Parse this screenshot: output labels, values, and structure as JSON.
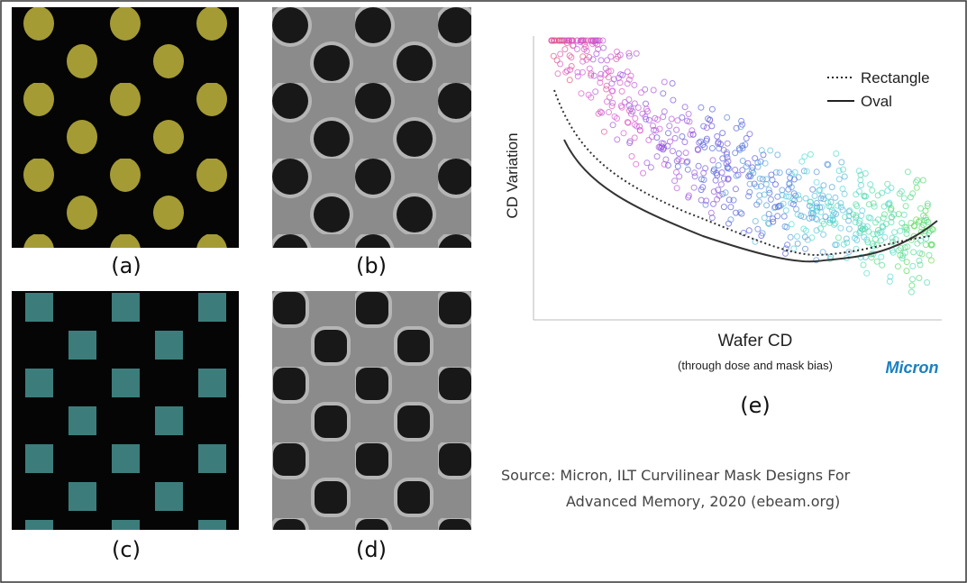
{
  "panels": [
    {
      "label": "(a)"
    },
    {
      "label": "(b)"
    },
    {
      "label": "(c)"
    },
    {
      "label": "(d)"
    }
  ],
  "chart": {
    "y_label": "CD Variation",
    "x_label": "Wafer CD",
    "x_sublabel": "(through dose and mask bias)",
    "legend": [
      "Rectangle",
      "Oval"
    ],
    "logo": "Micron",
    "label": "(e)"
  },
  "source": {
    "lines": [
      "Source: Micron, ILT Curvilinear Mask Designs For",
      "Advanced Memory, 2020 (ebeam.org)"
    ]
  }
}
